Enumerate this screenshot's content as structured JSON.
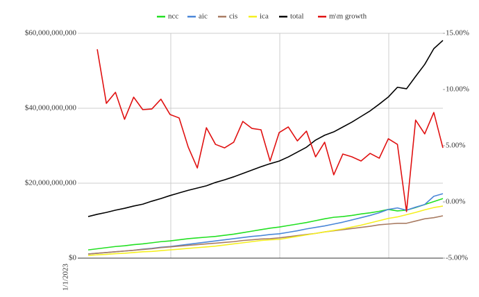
{
  "chart_data": {
    "type": "line",
    "categories": [
      "1/1/2023",
      null,
      null,
      null,
      null,
      null,
      null,
      null,
      null,
      null,
      null,
      null,
      null,
      null,
      null,
      null,
      null,
      null,
      null,
      null,
      null,
      null,
      null,
      null,
      null,
      null,
      null,
      null,
      null,
      null,
      null,
      null,
      null,
      null,
      null,
      null,
      null,
      null,
      null,
      null
    ],
    "series": [
      {
        "name": "ncc",
        "color": "#22e022",
        "values": [
          2200000000.0,
          2500000000.0,
          2800000000.0,
          3100000000.0,
          3300000000.0,
          3600000000.0,
          3800000000.0,
          4100000000.0,
          4400000000.0,
          4600000000.0,
          4900000000.0,
          5200000000.0,
          5400000000.0,
          5600000000.0,
          5800000000.0,
          6100000000.0,
          6400000000.0,
          6800000000.0,
          7200000000.0,
          7600000000.0,
          8000000000.0,
          8300000000.0,
          8700000000.0,
          9100000000.0,
          9500000000.0,
          10000000000.0,
          10500000000.0,
          10900000000.0,
          11100000000.0,
          11400000000.0,
          11800000000.0,
          12100000000.0,
          12500000000.0,
          13000000000.0,
          12600000000.0,
          12800000000.0,
          13500000000.0,
          14300000000.0,
          15100000000.0,
          15900000000.0
        ]
      },
      {
        "name": "aic",
        "color": "#4a86d8",
        "values": [
          1100000000.0,
          1300000000.0,
          1500000000.0,
          1700000000.0,
          1900000000.0,
          2100000000.0,
          2400000000.0,
          2600000000.0,
          2900000000.0,
          3100000000.0,
          3400000000.0,
          3700000000.0,
          4000000000.0,
          4300000000.0,
          4600000000.0,
          4900000000.0,
          5200000000.0,
          5500000000.0,
          5800000000.0,
          6000000000.0,
          6300000000.0,
          6500000000.0,
          6900000000.0,
          7300000000.0,
          7800000000.0,
          8200000000.0,
          8600000000.0,
          9100000000.0,
          9600000000.0,
          10200000000.0,
          10800000000.0,
          11400000000.0,
          12100000000.0,
          13000000000.0,
          13400000000.0,
          12800000000.0,
          13600000000.0,
          14300000000.0,
          16500000000.0,
          17200000000.0
        ]
      },
      {
        "name": "cis",
        "color": "#a97c63",
        "values": [
          1100000000.0,
          1300000000.0,
          1500000000.0,
          1700000000.0,
          1900000000.0,
          2100000000.0,
          2300000000.0,
          2500000000.0,
          2800000000.0,
          3000000000.0,
          3200000000.0,
          3400000000.0,
          3600000000.0,
          3800000000.0,
          4000000000.0,
          4200000000.0,
          4400000000.0,
          4700000000.0,
          4900000000.0,
          5100000000.0,
          5200000000.0,
          5400000000.0,
          5700000000.0,
          6000000000.0,
          6300000000.0,
          6600000000.0,
          7000000000.0,
          7300000000.0,
          7600000000.0,
          7900000000.0,
          8200000000.0,
          8500000000.0,
          8900000000.0,
          9100000000.0,
          9300000000.0,
          9300000000.0,
          9900000000.0,
          10500000000.0,
          10800000000.0,
          11300000000.0
        ]
      },
      {
        "name": "ica",
        "color": "#f5ef1f",
        "values": [
          700000000.0,
          900000000.0,
          1000000000.0,
          1200000000.0,
          1300000000.0,
          1500000000.0,
          1700000000.0,
          1800000000.0,
          2000000000.0,
          2200000000.0,
          2400000000.0,
          2600000000.0,
          2800000000.0,
          3000000000.0,
          3200000000.0,
          3500000000.0,
          3800000000.0,
          4100000000.0,
          4400000000.0,
          4700000000.0,
          4900000000.0,
          5000000000.0,
          5400000000.0,
          5800000000.0,
          6200000000.0,
          6600000000.0,
          7000000000.0,
          7400000000.0,
          7800000000.0,
          8300000000.0,
          8800000000.0,
          9400000000.0,
          10000000000.0,
          10600000000.0,
          11000000000.0,
          11600000000.0,
          12200000000.0,
          12900000000.0,
          13500000000.0,
          13900000000.0
        ]
      },
      {
        "name": "total",
        "color": "#000000",
        "values": [
          11100000000.0,
          11700000000.0,
          12200000000.0,
          12800000000.0,
          13300000000.0,
          13900000000.0,
          14400000000.0,
          15200000000.0,
          15900000000.0,
          16700000000.0,
          17400000000.0,
          18100000000.0,
          18700000000.0,
          19300000000.0,
          20200000000.0,
          20900000000.0,
          21700000000.0,
          22600000000.0,
          23500000000.0,
          24400000000.0,
          25200000000.0,
          25900000000.0,
          27000000000.0,
          28300000000.0,
          29600000000.0,
          31500000000.0,
          32800000000.0,
          33700000000.0,
          35000000000.0,
          36300000000.0,
          37800000000.0,
          39300000000.0,
          41100000000.0,
          43000000000.0,
          45600000000.0,
          45200000000.0,
          48500000000.0,
          51700000000.0,
          55900000000.0,
          58100000000.0
        ]
      },
      {
        "name": "m\\m growth",
        "color": "#e01010",
        "axis": "y2",
        "values": [
          null,
          13.58,
          8.77,
          9.75,
          7.35,
          9.32,
          8.21,
          8.27,
          9.14,
          7.78,
          7.47,
          4.88,
          3.02,
          6.6,
          5.12,
          4.81,
          5.31,
          7.16,
          6.54,
          6.42,
          3.64,
          6.17,
          6.67,
          5.43,
          6.3,
          4.01,
          5.31,
          2.41,
          4.26,
          4.01,
          3.64,
          4.32,
          3.89,
          5.62,
          5.12,
          -0.86,
          7.28,
          6.05,
          7.96,
          4.81
        ]
      }
    ],
    "ylim": [
      0,
      60000000000
    ],
    "yticks": [
      {
        "value": 0,
        "label": "$0"
      },
      {
        "value": 20000000000,
        "label": "$20,000,000,000"
      },
      {
        "value": 40000000000,
        "label": "$40,000,000,000"
      },
      {
        "value": 60000000000,
        "label": "$60,000,000,000"
      }
    ],
    "y2lim": [
      -5,
      15
    ],
    "y2ticks": [
      {
        "value": -5,
        "label": "-5.00%"
      },
      {
        "value": 0,
        "label": "0.00%"
      },
      {
        "value": 5,
        "label": "5.00%"
      },
      {
        "value": 10,
        "label": "10.00%"
      },
      {
        "value": 15,
        "label": "15.00%"
      }
    ],
    "grid": true,
    "legend": "top"
  }
}
